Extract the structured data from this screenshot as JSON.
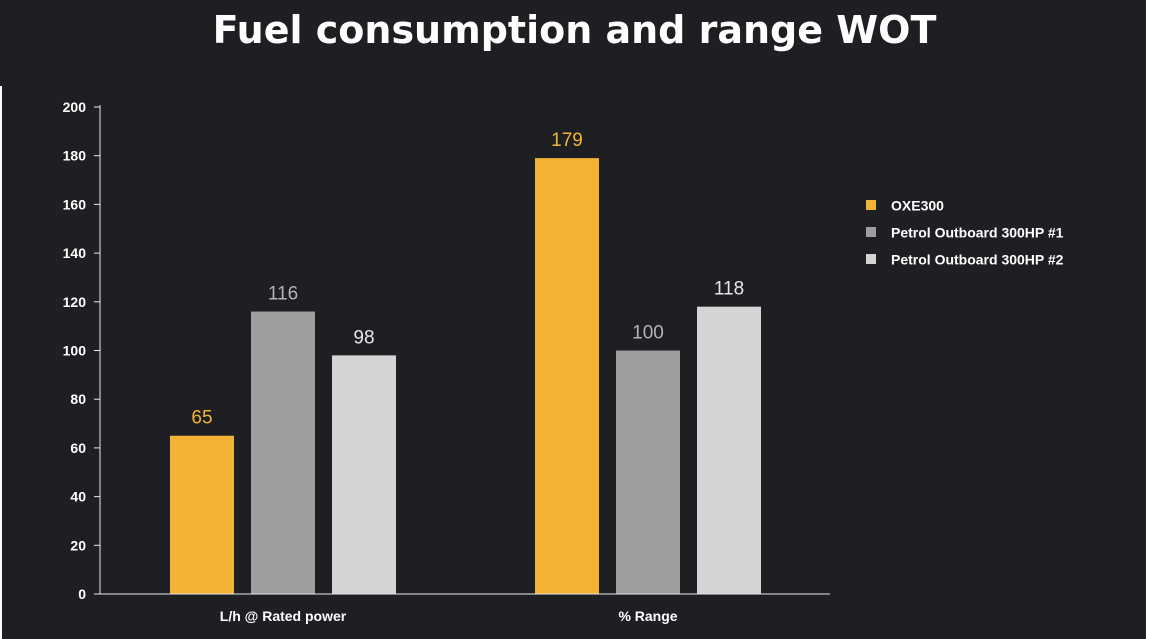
{
  "chart_data": {
    "type": "bar",
    "title": "Fuel consumption and range WOT",
    "categories": [
      "L/h @ Rated power",
      "% Range"
    ],
    "series": [
      {
        "name": "OXE300",
        "values": [
          65,
          179
        ],
        "color": "#f5b335",
        "label_color": "#f5b335"
      },
      {
        "name": "Petrol Outboard 300HP #1",
        "values": [
          116,
          100
        ],
        "color": "#9e9e9e",
        "label_color": "#b3b3b3"
      },
      {
        "name": "Petrol Outboard 300HP #2",
        "values": [
          98,
          118
        ],
        "color": "#d4d4d4",
        "label_color": "#e6e6e6"
      }
    ],
    "ylim": [
      0,
      200
    ],
    "yticks": [
      0,
      20,
      40,
      60,
      80,
      100,
      120,
      140,
      160,
      180,
      200
    ],
    "xlabel": "",
    "ylabel": "",
    "grid": false,
    "legend_position": "right"
  },
  "colors": {
    "background": "#1e1f22",
    "axis": "#e8e8e8",
    "text": "#ffffff"
  }
}
